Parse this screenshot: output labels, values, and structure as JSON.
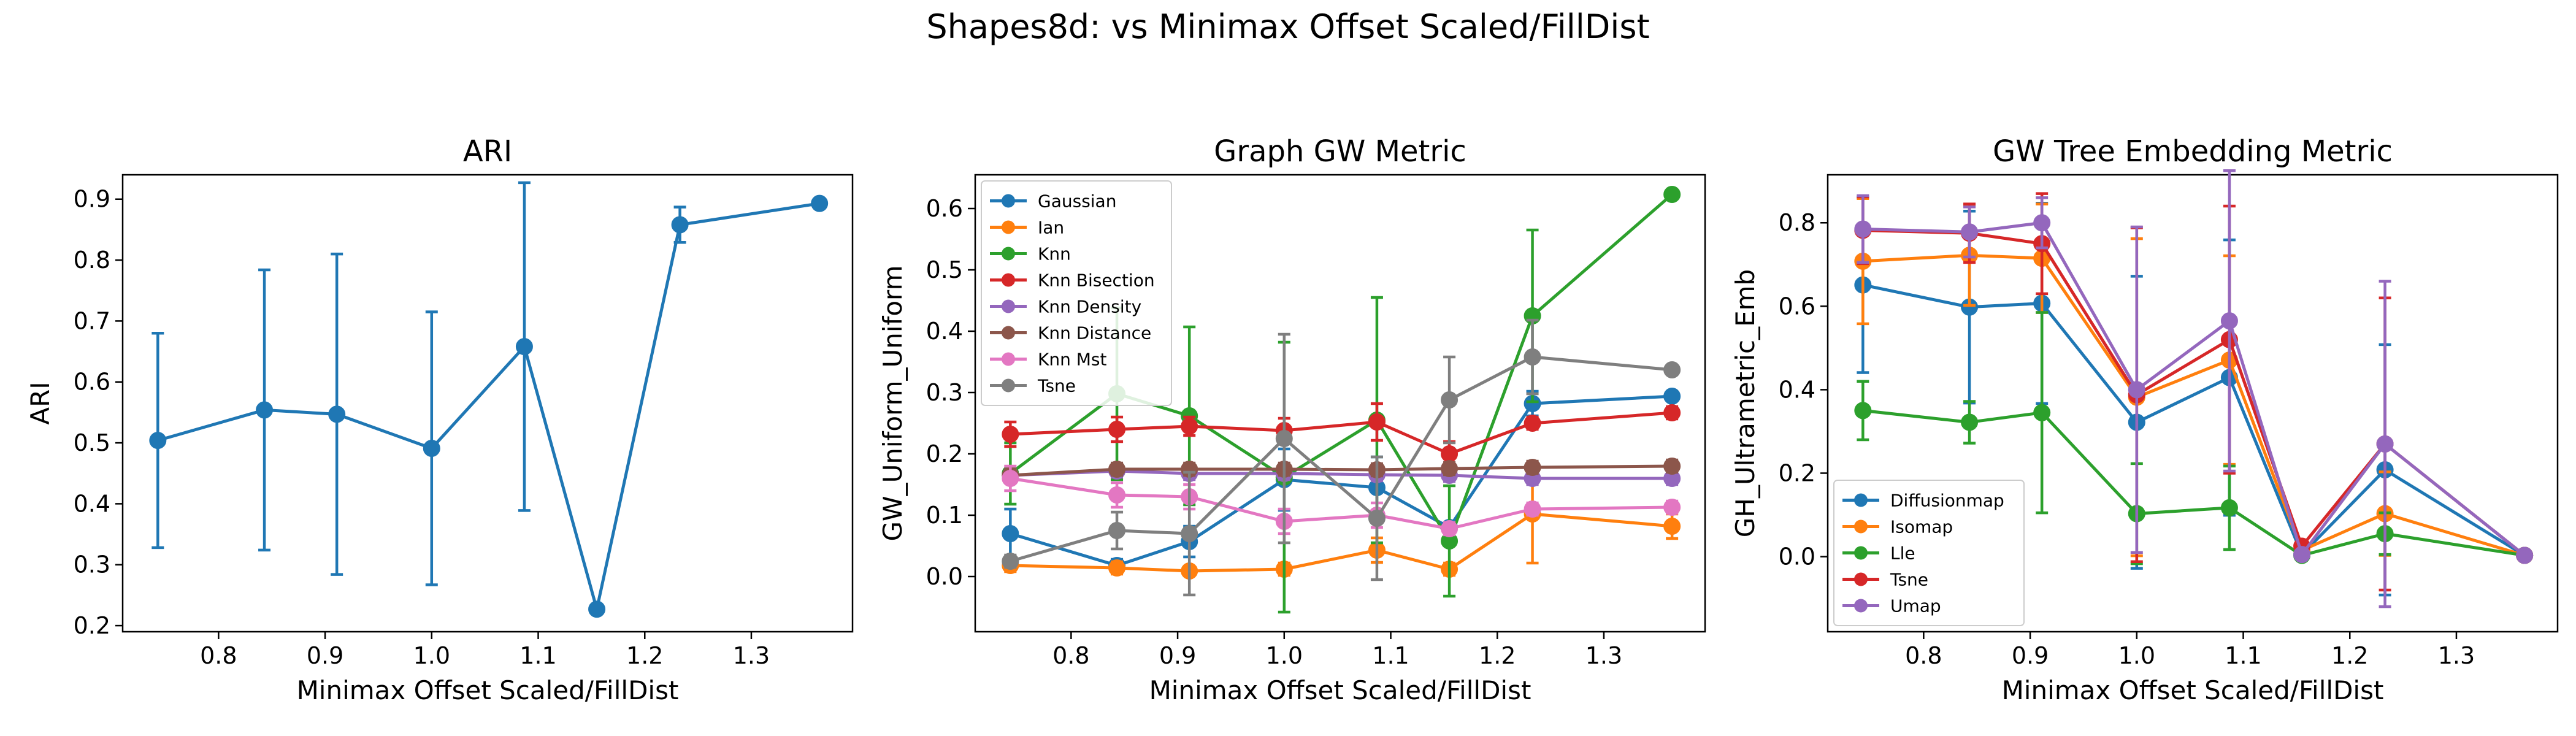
{
  "figure": {
    "title": "Shapes8d: vs Minimax Offset Scaled/FillDist"
  },
  "chart_data": [
    {
      "type": "line",
      "title": "ARI",
      "xlabel": "Minimax Offset Scaled/FillDist",
      "ylabel": "ARI",
      "xlim": [
        0.71,
        1.395
      ],
      "ylim": [
        0.19,
        0.94
      ],
      "xticks": [
        "0.8",
        "0.9",
        "1.0",
        "1.1",
        "1.2",
        "1.3"
      ],
      "yticks": [
        "0.2",
        "0.3",
        "0.4",
        "0.5",
        "0.6",
        "0.7",
        "0.8",
        "0.9"
      ],
      "x": [
        0.743,
        0.843,
        0.911,
        1.0,
        1.087,
        1.155,
        1.233,
        1.364
      ],
      "series": [
        {
          "color": "#1f77b4",
          "values": [
            0.504,
            0.554,
            0.547,
            0.491,
            0.658,
            0.227,
            0.858,
            0.893
          ],
          "err": [
            0.176,
            0.23,
            0.263,
            0.224,
            0.269,
            0.0,
            0.029,
            0.0
          ]
        }
      ]
    },
    {
      "type": "line",
      "title": "Graph GW Metric",
      "xlabel": "Minimax Offset Scaled/FillDist",
      "ylabel": "GW_Uniform_Uniform",
      "xlim": [
        0.71,
        1.395
      ],
      "ylim": [
        -0.09,
        0.655
      ],
      "xticks": [
        "0.8",
        "0.9",
        "1.0",
        "1.1",
        "1.2",
        "1.3"
      ],
      "yticks": [
        "0.0",
        "0.1",
        "0.2",
        "0.3",
        "0.4",
        "0.5",
        "0.6"
      ],
      "legend_position": "upper-left",
      "x": [
        0.743,
        0.843,
        0.911,
        1.0,
        1.087,
        1.155,
        1.233,
        1.364
      ],
      "series": [
        {
          "name": "Gaussian",
          "color": "#1f77b4",
          "values": [
            0.07,
            0.018,
            0.057,
            0.158,
            0.145,
            0.08,
            0.282,
            0.294
          ],
          "err": [
            0.04,
            0.01,
            0.025,
            0.05,
            0.05,
            0.0,
            0.02,
            0.0
          ]
        },
        {
          "name": "Ian",
          "color": "#ff7f0e",
          "values": [
            0.018,
            0.014,
            0.009,
            0.012,
            0.043,
            0.012,
            0.102,
            0.082
          ],
          "err": [
            0.01,
            0.01,
            0.005,
            0.01,
            0.02,
            0.01,
            0.08,
            0.02
          ]
        },
        {
          "name": "Knn",
          "color": "#2ca02c",
          "values": [
            0.168,
            0.298,
            0.262,
            0.162,
            0.255,
            0.058,
            0.425,
            0.623
          ],
          "err": [
            0.05,
            0.14,
            0.145,
            0.22,
            0.2,
            0.09,
            0.14,
            0.0
          ]
        },
        {
          "name": "Knn Bisection",
          "color": "#d62728",
          "values": [
            0.232,
            0.24,
            0.245,
            0.238,
            0.252,
            0.2,
            0.25,
            0.267
          ],
          "err": [
            0.02,
            0.02,
            0.015,
            0.02,
            0.03,
            0.02,
            0.01,
            0.01
          ]
        },
        {
          "name": "Knn Density",
          "color": "#9467bd",
          "values": [
            0.165,
            0.172,
            0.168,
            0.168,
            0.166,
            0.165,
            0.16,
            0.16
          ],
          "err": [
            0.01,
            0.01,
            0.01,
            0.01,
            0.01,
            0.01,
            0.01,
            0.01
          ]
        },
        {
          "name": "Knn Distance",
          "color": "#8c564b",
          "values": [
            0.165,
            0.175,
            0.175,
            0.175,
            0.174,
            0.176,
            0.178,
            0.18
          ],
          "err": [
            0.01,
            0.01,
            0.01,
            0.01,
            0.01,
            0.01,
            0.01,
            0.01
          ]
        },
        {
          "name": "Knn Mst",
          "color": "#e377c2",
          "values": [
            0.16,
            0.133,
            0.13,
            0.09,
            0.1,
            0.078,
            0.11,
            0.113
          ],
          "err": [
            0.02,
            0.02,
            0.02,
            0.02,
            0.02,
            0.01,
            0.01,
            0.01
          ]
        },
        {
          "name": "Tsne",
          "color": "#7f7f7f",
          "values": [
            0.025,
            0.075,
            0.07,
            0.225,
            0.095,
            0.288,
            0.358,
            0.337
          ],
          "err": [
            0.01,
            0.03,
            0.1,
            0.17,
            0.1,
            0.07,
            0.06,
            0.0
          ]
        }
      ]
    },
    {
      "type": "line",
      "title": "GW Tree Embedding Metric",
      "xlabel": "Minimax Offset Scaled/FillDist",
      "ylabel": "GH_Ultrametric_Emb",
      "xlim": [
        0.71,
        1.395
      ],
      "ylim": [
        -0.18,
        0.915
      ],
      "xticks": [
        "0.8",
        "0.9",
        "1.0",
        "1.1",
        "1.2",
        "1.3"
      ],
      "yticks": [
        "0.0",
        "0.2",
        "0.4",
        "0.6",
        "0.8"
      ],
      "legend_position": "lower-left",
      "x": [
        0.743,
        0.843,
        0.911,
        1.0,
        1.087,
        1.155,
        1.233,
        1.364
      ],
      "series": [
        {
          "name": "Diffusionmap",
          "color": "#1f77b4",
          "values": [
            0.651,
            0.598,
            0.607,
            0.322,
            0.429,
            0.005,
            0.208,
            0.003
          ],
          "err": [
            0.21,
            0.23,
            0.24,
            0.35,
            0.33,
            0.01,
            0.3,
            0.0
          ]
        },
        {
          "name": "Isomap",
          "color": "#ff7f0e",
          "values": [
            0.708,
            0.722,
            0.715,
            0.382,
            0.471,
            0.015,
            0.103,
            0.003
          ],
          "err": [
            0.15,
            0.12,
            0.13,
            0.38,
            0.25,
            0.01,
            0.1,
            0.0
          ]
        },
        {
          "name": "Lle",
          "color": "#2ca02c",
          "values": [
            0.35,
            0.322,
            0.345,
            0.103,
            0.117,
            0.003,
            0.055,
            0.003
          ],
          "err": [
            0.07,
            0.05,
            0.24,
            0.12,
            0.1,
            0.0,
            0.05,
            0.0
          ]
        },
        {
          "name": "Tsne",
          "color": "#d62728",
          "values": [
            0.782,
            0.775,
            0.75,
            0.388,
            0.52,
            0.025,
            0.27,
            0.003
          ],
          "err": [
            0.08,
            0.07,
            0.12,
            0.4,
            0.32,
            0.01,
            0.35,
            0.0
          ]
        },
        {
          "name": "Umap",
          "color": "#9467bd",
          "values": [
            0.785,
            0.778,
            0.8,
            0.4,
            0.565,
            0.005,
            0.27,
            0.003
          ],
          "err": [
            0.08,
            0.06,
            0.06,
            0.39,
            0.36,
            0.01,
            0.39,
            0.0
          ]
        }
      ]
    }
  ]
}
